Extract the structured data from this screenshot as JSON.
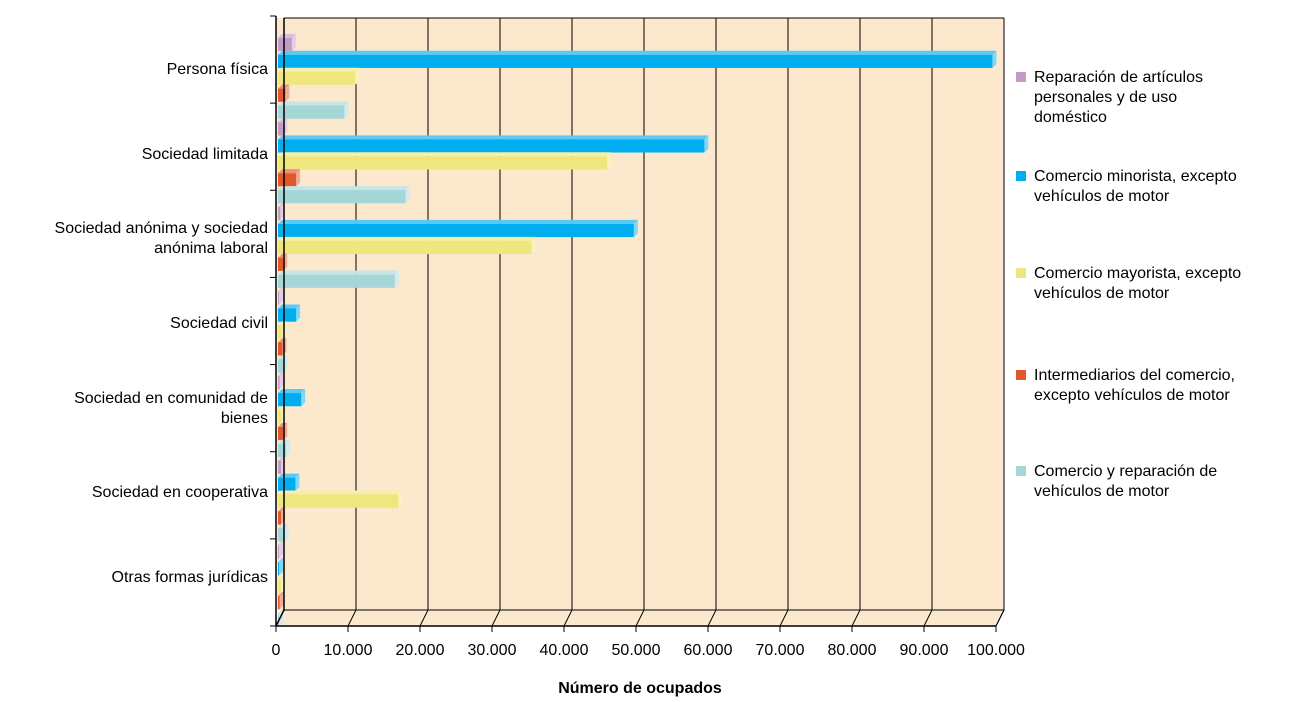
{
  "chart_data": {
    "type": "bar",
    "orientation": "horizontal",
    "xlabel": "Número de ocupados",
    "xlim": [
      0,
      100000
    ],
    "xticks": [
      "0",
      "10.000",
      "20.000",
      "30.000",
      "40.000",
      "50.000",
      "60.000",
      "70.000",
      "80.000",
      "90.000",
      "100.000"
    ],
    "categories": [
      "Persona física",
      "Sociedad limitada",
      "Sociedad anónima y sociedad anónima laboral",
      "Sociedad civil",
      "Sociedad en comunidad de bienes",
      "Sociedad en cooperativa",
      "Otras formas jurídicas"
    ],
    "series": [
      {
        "name": "Reparación de artículos personales y de uso doméstico",
        "color": "#c49ac6",
        "values": [
          2200,
          1000,
          600,
          400,
          500,
          700,
          100
        ]
      },
      {
        "name": "Comercio minorista, excepto vehículos de motor",
        "color": "#00aeef",
        "values": [
          99500,
          59500,
          49700,
          2800,
          3500,
          2700,
          400
        ]
      },
      {
        "name": "Comercio mayorista, excepto vehículos de motor",
        "color": "#efe67d",
        "values": [
          11000,
          46000,
          35500,
          900,
          800,
          17000,
          700
        ]
      },
      {
        "name": "Intermediarios del comercio, excepto vehículos de motor",
        "color": "#e2582b",
        "values": [
          1300,
          2800,
          1000,
          900,
          1000,
          700,
          500
        ]
      },
      {
        "name": "Comercio y reparación de vehículos de motor",
        "color": "#a6d7d8",
        "values": [
          9500,
          18000,
          16500,
          1000,
          1400,
          1200,
          300
        ]
      }
    ],
    "grid": true,
    "legend": "right"
  }
}
